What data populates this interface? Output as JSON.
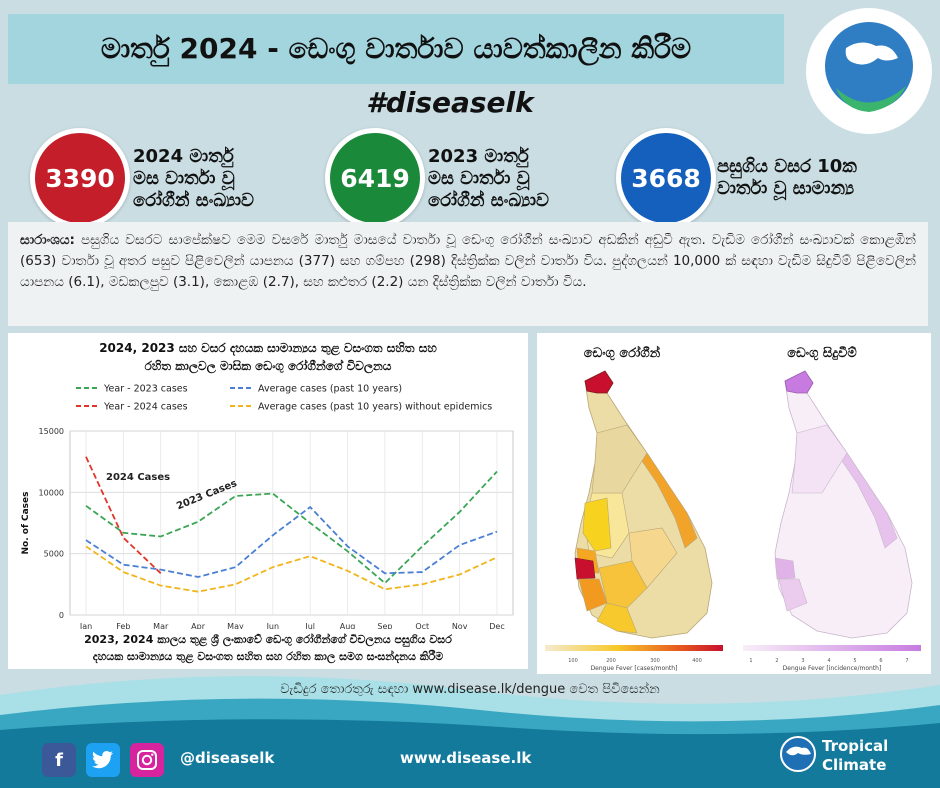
{
  "header": {
    "title": "මාර්තු 2024 - ඩෙංගු වාර්තාව යාවත්කාලීන කිරීම",
    "hashtag": "#diseaselk"
  },
  "stats": [
    {
      "value": "3390",
      "label_lines": [
        "2024 මාර්තු",
        "මස වාර්තා වූ",
        "රෝගීන් සංඛ්‍යාව"
      ],
      "color": "#c41e2a"
    },
    {
      "value": "6419",
      "label_lines": [
        "2023 මාර්තු",
        "මස වාර්තා වූ",
        "රෝගීන් සංඛ්‍යාව"
      ],
      "color": "#1a8a3a"
    },
    {
      "value": "3668",
      "label_lines": [
        "පසුගිය වසර 10ක",
        "වාර්තා වූ සාමාන්‍ය"
      ],
      "color": "#1560bd"
    }
  ],
  "summary": {
    "heading": "සාරාංශය:",
    "text": "පසුගිය වසරට සාපේක්ෂව මෙම වසරේ මාර්තු මාසයේ වාර්තා වූ ඩෙංගු රෝගීන් සංඛ්‍යාව අඩකින් අඩුවී ඇත. වැඩිම රෝගීන් සංඛ්‍යාවක් කොළඹින් (653) වාර්තා වූ අතර පසුව පිළිවෙලින් යාපනය (377) සහ ගම්පහ (298) දිස්ත්‍රික්ක වලින් වාර්තා විය. පුද්ගලයන් 10,000 ක් සඳහා වැඩිම සිදුවීම් පිළිවෙලින් යාපනය (6.1), මඩකලපුව (3.1), කොළඹ (2.7), සහ කළුතර (2.2) යන දිස්ත්‍රික්ක වලින් වාර්තා විය."
  },
  "chart_data": {
    "type": "line",
    "title_lines": [
      "2024, 2023 සහ වසර දහයක සාමාන්‍යය තුළ වසංගත සහිත සහ",
      "රහිත කාලවල මාසික ඩෙංගු රෝගීන්ගේ විචලනය"
    ],
    "footer_lines": [
      "2023, 2024 කාලය තුළ ශ්‍රී ලංකාවේ ඩෙංගු රෝගීන්ගේ විචලනය පසුගිය වසර",
      "දහයක සාමාන්‍යය තුළ වසංගත සහිත සහ රහිත කාල සමග සංසන්දනය කිරීම"
    ],
    "ylabel": "No. of Cases",
    "ylim": [
      0,
      15000
    ],
    "yticks": [
      0,
      5000,
      10000,
      15000
    ],
    "categories": [
      "Jan",
      "Feb",
      "Mar",
      "Apr",
      "May",
      "Jun",
      "Jul",
      "Aug",
      "Sep",
      "Oct",
      "Nov",
      "Dec"
    ],
    "grid": true,
    "legend_position": "top",
    "series": [
      {
        "name": "Year - 2023 cases",
        "color": "#3aa655",
        "values": [
          8900,
          6700,
          6400,
          7600,
          9700,
          9900,
          7500,
          5200,
          2600,
          5600,
          8400,
          11700
        ]
      },
      {
        "name": "Year - 2024 cases",
        "color": "#e0352b",
        "values": [
          12900,
          6300,
          3400,
          null,
          null,
          null,
          null,
          null,
          null,
          null,
          null,
          null
        ]
      },
      {
        "name": "Average cases (past 10 years)",
        "color": "#4a7fd4",
        "values": [
          6100,
          4100,
          3700,
          3100,
          3900,
          6500,
          8800,
          5600,
          3400,
          3500,
          5700,
          6800
        ]
      },
      {
        "name": "Average cases (past 10 years) without epidemics",
        "color": "#f2b41c",
        "values": [
          5600,
          3500,
          2400,
          1900,
          2500,
          3900,
          4800,
          3600,
          2100,
          2500,
          3300,
          4700
        ]
      }
    ],
    "annotations": [
      {
        "text": "2024 Cases",
        "series": "Year - 2024 cases"
      },
      {
        "text": "2023 Cases",
        "series": "Year - 2023 cases"
      }
    ]
  },
  "maps": {
    "left_title": "ඩෙංගු රෝගීන්",
    "right_title": "ඩෙංගු සිදුවීම්",
    "left_scale_label": "Dengue Fever [cases/month]",
    "left_scale_ticks": [
      "100",
      "200",
      "300",
      "400"
    ],
    "right_scale_label": "Dengue Fever [incidence/month]",
    "right_scale_ticks": [
      "1",
      "2",
      "3",
      "4",
      "5",
      "6",
      "7"
    ],
    "left_colors": [
      "#f5ead0",
      "#f8e79a",
      "#f7c92c",
      "#f29a1f",
      "#e75b1e",
      "#c8102e"
    ],
    "right_colors": [
      "#f8eef8",
      "#f1ddf3",
      "#e6c2ec",
      "#d79fe6",
      "#c77be0"
    ]
  },
  "footer": {
    "more_info": "වැඩිදුර තොරතුරු සඳහා www.disease.lk/dengue වෙත පිවිසෙන්න",
    "handle": "@diseaselk",
    "website": "www.disease.lk",
    "brand_line1": "Tropical",
    "brand_line2": "Climate",
    "icons": [
      "facebook-icon",
      "twitter-icon",
      "instagram-icon"
    ]
  }
}
